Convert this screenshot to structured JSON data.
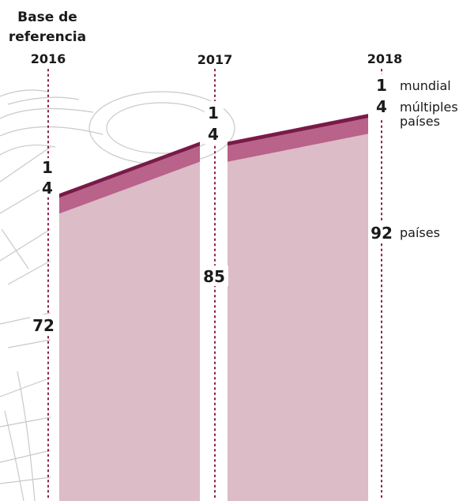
{
  "chart_data": {
    "type": "area",
    "baseline_label": [
      "Base de",
      "referencia"
    ],
    "x": [
      "2016",
      "2017",
      "2018"
    ],
    "series": [
      {
        "name": "países",
        "values": [
          72,
          85,
          92
        ],
        "color": "#dcbcc7"
      },
      {
        "name": "múltiples países",
        "values": [
          4,
          4,
          4
        ],
        "color": "#b9628a"
      },
      {
        "name": "mundial",
        "values": [
          1,
          1,
          1
        ],
        "color": "#7a1a48"
      }
    ],
    "series_labels": {
      "mundial": "mundial",
      "multiples": [
        "múltiples",
        "países"
      ],
      "paises": "países"
    }
  }
}
